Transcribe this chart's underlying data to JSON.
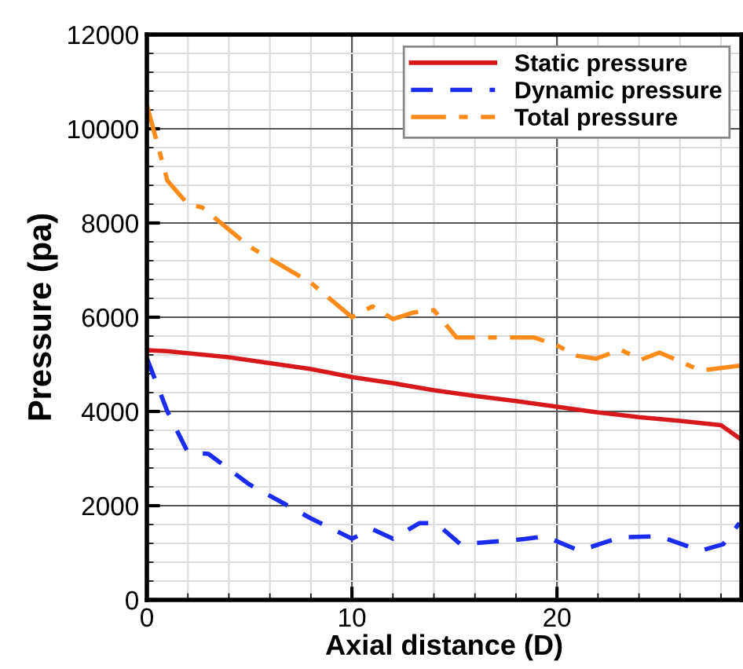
{
  "chart_data": {
    "type": "line",
    "xlabel": "Axial distance (D)",
    "ylabel": "Pressure (pa)",
    "xlim": [
      0,
      29
    ],
    "ylim": [
      0,
      12000
    ],
    "xticks": [
      0,
      10,
      20
    ],
    "yticks": [
      0,
      2000,
      4000,
      6000,
      8000,
      10000,
      12000
    ],
    "grid": true,
    "legend": "top right",
    "series": [
      {
        "name": "Static pressure",
        "color": "#d7191c",
        "line_style": "solid",
        "x": [
          0,
          1,
          4,
          8,
          10,
          12,
          14,
          16,
          18,
          20,
          22,
          24,
          26,
          28,
          29
        ],
        "values": [
          5300,
          5280,
          5150,
          4900,
          4730,
          4600,
          4450,
          4330,
          4220,
          4100,
          3980,
          3880,
          3800,
          3710,
          3400
        ]
      },
      {
        "name": "Dynamic pressure",
        "color": "#1a2cf0",
        "line_style": "dashed",
        "x": [
          0,
          1,
          2,
          3,
          5,
          8,
          10,
          11,
          12,
          13.3,
          14.1,
          15.3,
          18.4,
          19.4,
          21.1,
          23.1,
          25,
          27,
          28.1,
          28.9
        ],
        "values": [
          5130,
          4000,
          3130,
          3100,
          2450,
          1730,
          1300,
          1500,
          1300,
          1630,
          1630,
          1180,
          1290,
          1350,
          1045,
          1330,
          1350,
          1045,
          1180,
          1630
        ]
      },
      {
        "name": "Total pressure",
        "color": "#ff8c1a",
        "line_style": "dashdot",
        "x": [
          0,
          1,
          2,
          2.7,
          5,
          8,
          10,
          11,
          12,
          13,
          14,
          15.1,
          18.9,
          20,
          21,
          21.9,
          23.1,
          24.1,
          25,
          27,
          28.9
        ],
        "values": [
          10500,
          8900,
          8400,
          8330,
          7500,
          6730,
          6000,
          6230,
          5960,
          6100,
          6150,
          5570,
          5570,
          5400,
          5180,
          5120,
          5310,
          5100,
          5250,
          4870,
          4970
        ]
      }
    ]
  }
}
